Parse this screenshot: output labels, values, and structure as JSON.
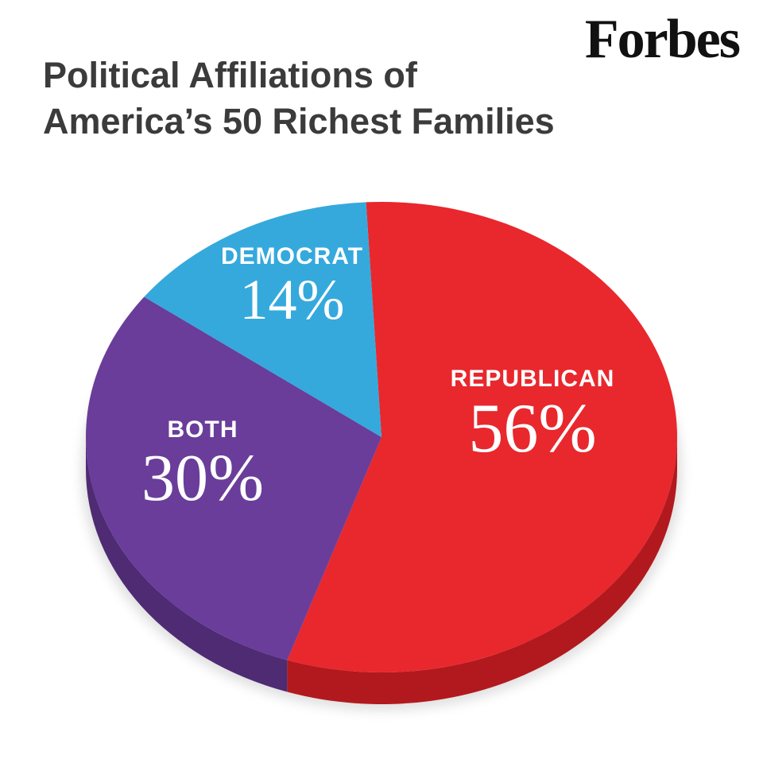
{
  "header": {
    "brand": "Forbes",
    "title_line1": "Political Affiliations of",
    "title_line2": "America’s 50 Richest Families"
  },
  "chart_data": {
    "type": "pie",
    "style": "3d",
    "title": "Political Affiliations of America’s 50 Richest Families",
    "source_brand": "Forbes",
    "unit": "%",
    "categories": [
      "REPUBLICAN",
      "BOTH",
      "DEMOCRAT"
    ],
    "values": [
      56,
      30,
      14
    ],
    "start_angle_deg": -3,
    "label_color": "#FFFFFF",
    "slices": [
      {
        "label": "REPUBLICAN",
        "value": 56,
        "value_label": "56%",
        "color": "#E8282D",
        "side_color": "#B2191E"
      },
      {
        "label": "BOTH",
        "value": 30,
        "value_label": "30%",
        "color": "#6A3D9A",
        "side_color": "#4E2B73"
      },
      {
        "label": "DEMOCRAT",
        "value": 14,
        "value_label": "14%",
        "color": "#35A9DC",
        "side_color": "#2583AD"
      }
    ]
  }
}
